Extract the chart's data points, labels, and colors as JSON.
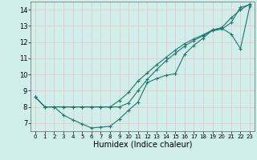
{
  "xlabel": "Humidex (Indice chaleur)",
  "background_color": "#d0eeea",
  "grid_color": "#e8c8c8",
  "line_color": "#1a7a6e",
  "xlim": [
    -0.5,
    23.5
  ],
  "ylim": [
    6.5,
    14.5
  ],
  "xticks": [
    0,
    1,
    2,
    3,
    4,
    5,
    6,
    7,
    8,
    9,
    10,
    11,
    12,
    13,
    14,
    15,
    16,
    17,
    18,
    19,
    20,
    21,
    22,
    23
  ],
  "yticks": [
    7,
    8,
    9,
    10,
    11,
    12,
    13,
    14
  ],
  "line1_x": [
    0,
    1,
    2,
    3,
    4,
    5,
    6,
    7,
    8,
    9,
    10,
    11,
    12,
    13,
    14,
    15,
    16,
    17,
    18,
    19,
    20,
    21,
    22,
    23
  ],
  "line1_y": [
    8.6,
    8.0,
    8.0,
    7.5,
    7.2,
    6.95,
    6.7,
    6.75,
    6.8,
    7.25,
    7.8,
    8.3,
    9.5,
    9.75,
    9.95,
    10.05,
    11.25,
    11.8,
    12.25,
    12.75,
    12.85,
    12.5,
    11.6,
    14.2
  ],
  "line2_x": [
    0,
    1,
    2,
    3,
    4,
    5,
    6,
    7,
    8,
    9,
    10,
    11,
    12,
    13,
    14,
    15,
    16,
    17,
    18,
    19,
    20,
    21,
    22,
    23
  ],
  "line2_y": [
    8.6,
    8.0,
    8.0,
    8.0,
    8.0,
    8.0,
    8.0,
    8.0,
    8.0,
    8.0,
    8.25,
    9.0,
    9.7,
    10.3,
    10.85,
    11.3,
    11.75,
    12.1,
    12.4,
    12.7,
    12.8,
    13.2,
    14.15,
    14.3
  ],
  "line3_x": [
    0,
    1,
    2,
    3,
    4,
    5,
    6,
    7,
    8,
    9,
    10,
    11,
    12,
    13,
    14,
    15,
    16,
    17,
    18,
    19,
    20,
    21,
    22,
    23
  ],
  "line3_y": [
    8.6,
    8.0,
    8.0,
    8.0,
    8.0,
    8.0,
    8.0,
    8.0,
    8.0,
    8.4,
    8.9,
    9.6,
    10.1,
    10.6,
    11.05,
    11.5,
    11.9,
    12.2,
    12.45,
    12.75,
    12.9,
    13.5,
    14.0,
    14.35
  ]
}
